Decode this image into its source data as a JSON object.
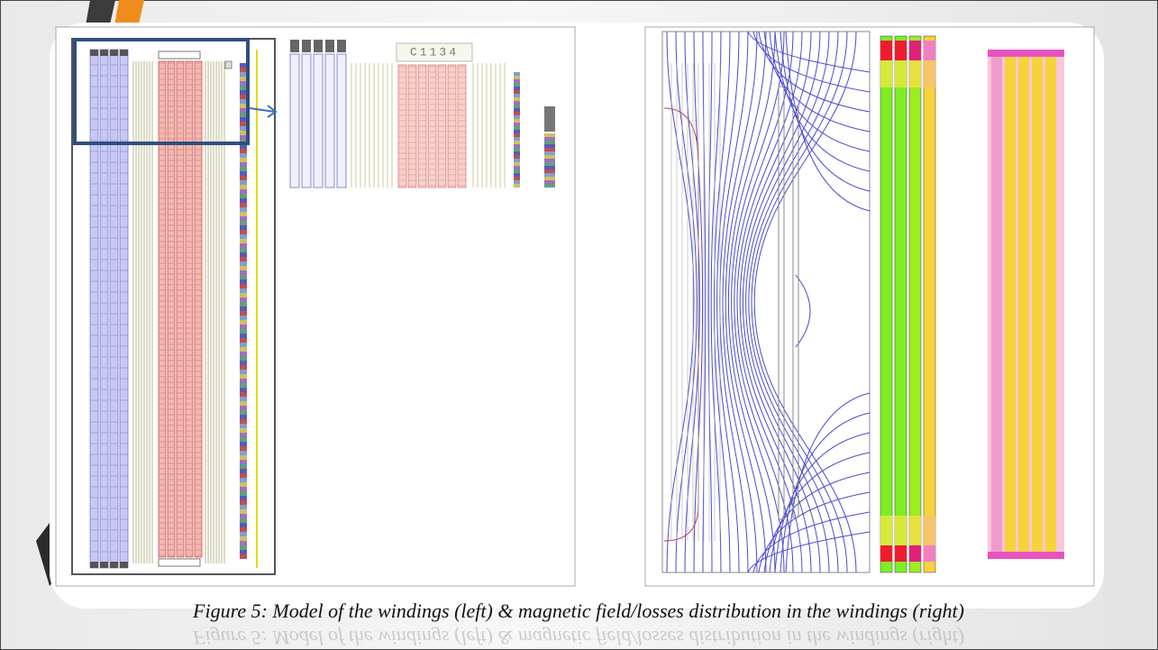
{
  "figure": {
    "inset_label": "C1134",
    "caption": "Figure 5: Model of the windings (left) & magnetic field/losses distribution in the windings (right)"
  }
}
